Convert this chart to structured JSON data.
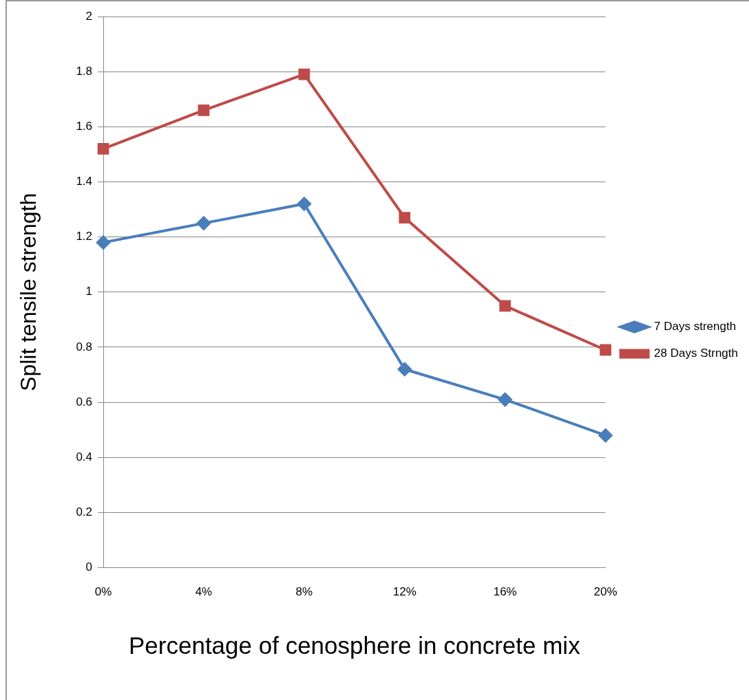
{
  "chart_data": {
    "type": "line",
    "xlabel": "Percentage of cenosphere in concrete mix",
    "ylabel": "Split tensile strength",
    "categories": [
      "0%",
      "4%",
      "8%",
      "12%",
      "16%",
      "20%"
    ],
    "series": [
      {
        "name": "7 Days strength",
        "color": "#4a7ebb",
        "marker": "diamond",
        "values": [
          1.18,
          1.25,
          1.32,
          0.72,
          0.61,
          0.48
        ]
      },
      {
        "name": "28 Days Strngth",
        "color": "#be4b48",
        "marker": "square",
        "values": [
          1.52,
          1.66,
          1.79,
          1.27,
          0.95,
          0.79
        ]
      }
    ],
    "ylim": [
      0,
      2
    ],
    "yticks": [
      0,
      0.2,
      0.4,
      0.6,
      0.8,
      1,
      1.2,
      1.4,
      1.6,
      1.8,
      2
    ],
    "grid": "y",
    "legend": "right",
    "line_style": "solid"
  }
}
